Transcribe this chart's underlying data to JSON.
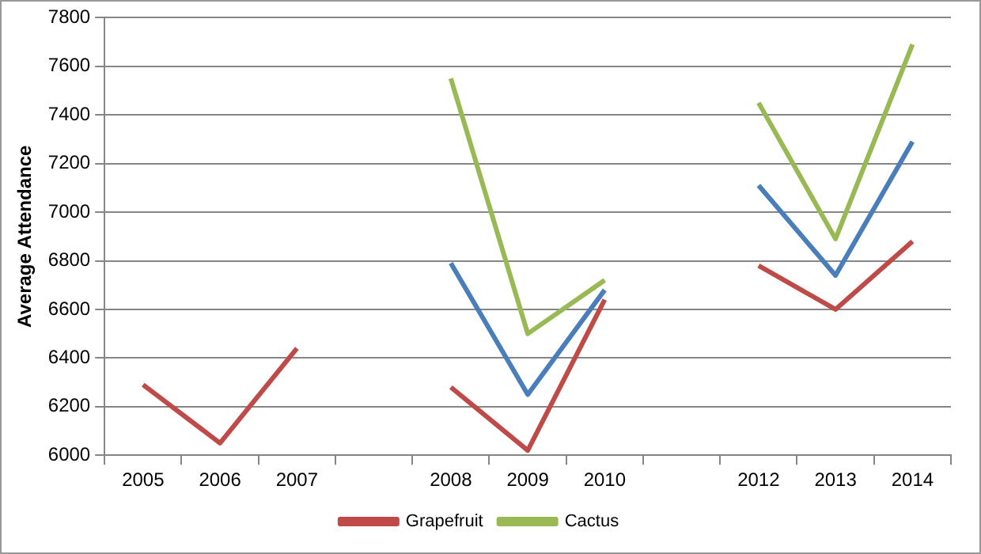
{
  "chart_data": {
    "type": "line",
    "ylabel": "Average Attendance",
    "categories": [
      "2005",
      "2006",
      "2007",
      null,
      "2008",
      "2009",
      "2010",
      null,
      "2012",
      "2013",
      "2014"
    ],
    "series": [
      {
        "color": "#4a7ebb",
        "values": [
          null,
          null,
          null,
          null,
          6790,
          6250,
          6680,
          null,
          7110,
          6740,
          7290
        ]
      },
      {
        "name": "Grapefruit",
        "color": "#be4b48",
        "values": [
          6290,
          6050,
          6440,
          null,
          6280,
          6020,
          6640,
          null,
          6780,
          6600,
          6880
        ]
      },
      {
        "name": "Cactus",
        "color": "#98b954",
        "values": [
          null,
          null,
          null,
          null,
          7550,
          6500,
          6720,
          null,
          7450,
          6890,
          7690
        ]
      }
    ],
    "ylim": [
      6000,
      7800
    ],
    "yticks": [
      6000,
      6200,
      6400,
      6600,
      6800,
      7000,
      7200,
      7400,
      7600,
      7800
    ],
    "grid": "y",
    "legend": "bottom",
    "marker": "none",
    "line_style": "solid"
  }
}
